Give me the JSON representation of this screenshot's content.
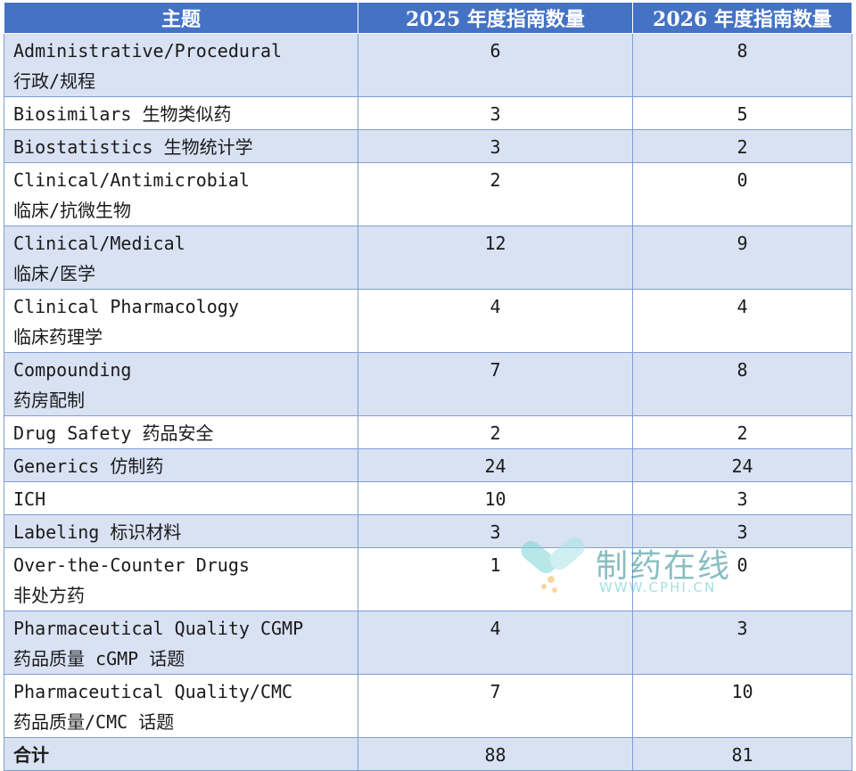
{
  "header": {
    "topic": "主题",
    "col2025": "2025 年度指南数量",
    "col2026": "2026 年度指南数量"
  },
  "rows": [
    {
      "en": "Administrative/Procedural",
      "zh": "行政/规程",
      "v2025": "6",
      "v2026": "8"
    },
    {
      "en": "Biosimilars 生物类似药",
      "zh": "",
      "v2025": "3",
      "v2026": "5"
    },
    {
      "en": "Biostatistics 生物统计学",
      "zh": "",
      "v2025": "3",
      "v2026": "2"
    },
    {
      "en": "Clinical/Antimicrobial",
      "zh": "临床/抗微生物",
      "v2025": "2",
      "v2026": "0"
    },
    {
      "en": "Clinical/Medical",
      "zh": "临床/医学",
      "v2025": "12",
      "v2026": "9"
    },
    {
      "en": "Clinical Pharmacology",
      "zh": "临床药理学",
      "v2025": "4",
      "v2026": "4"
    },
    {
      "en": "Compounding",
      "zh": "药房配制",
      "v2025": "7",
      "v2026": "8"
    },
    {
      "en": "Drug Safety 药品安全",
      "zh": "",
      "v2025": "2",
      "v2026": "2"
    },
    {
      "en": "Generics 仿制药",
      "zh": "",
      "v2025": "24",
      "v2026": "24"
    },
    {
      "en": "ICH",
      "zh": "",
      "v2025": "10",
      "v2026": "3"
    },
    {
      "en": "Labeling 标识材料",
      "zh": "",
      "v2025": "3",
      "v2026": "3"
    },
    {
      "en": "Over-the-Counter Drugs",
      "zh": "非处方药",
      "v2025": "1",
      "v2026": "0"
    },
    {
      "en": "Pharmaceutical Quality CGMP",
      "zh": "药品质量 cGMP 话题",
      "v2025": "4",
      "v2026": "3"
    },
    {
      "en": "Pharmaceutical Quality/CMC",
      "zh": "药品质量/CMC 话题",
      "v2025": "7",
      "v2026": "10"
    }
  ],
  "total": {
    "label": "合计",
    "v2025": "88",
    "v2026": "81"
  },
  "watermark": {
    "name": "制药在线",
    "url": "WWW.CPHI.CN"
  },
  "colors": {
    "header_bg": "#4472c4",
    "band_bg": "#d9e2f3",
    "border": "#7f9ed3"
  }
}
